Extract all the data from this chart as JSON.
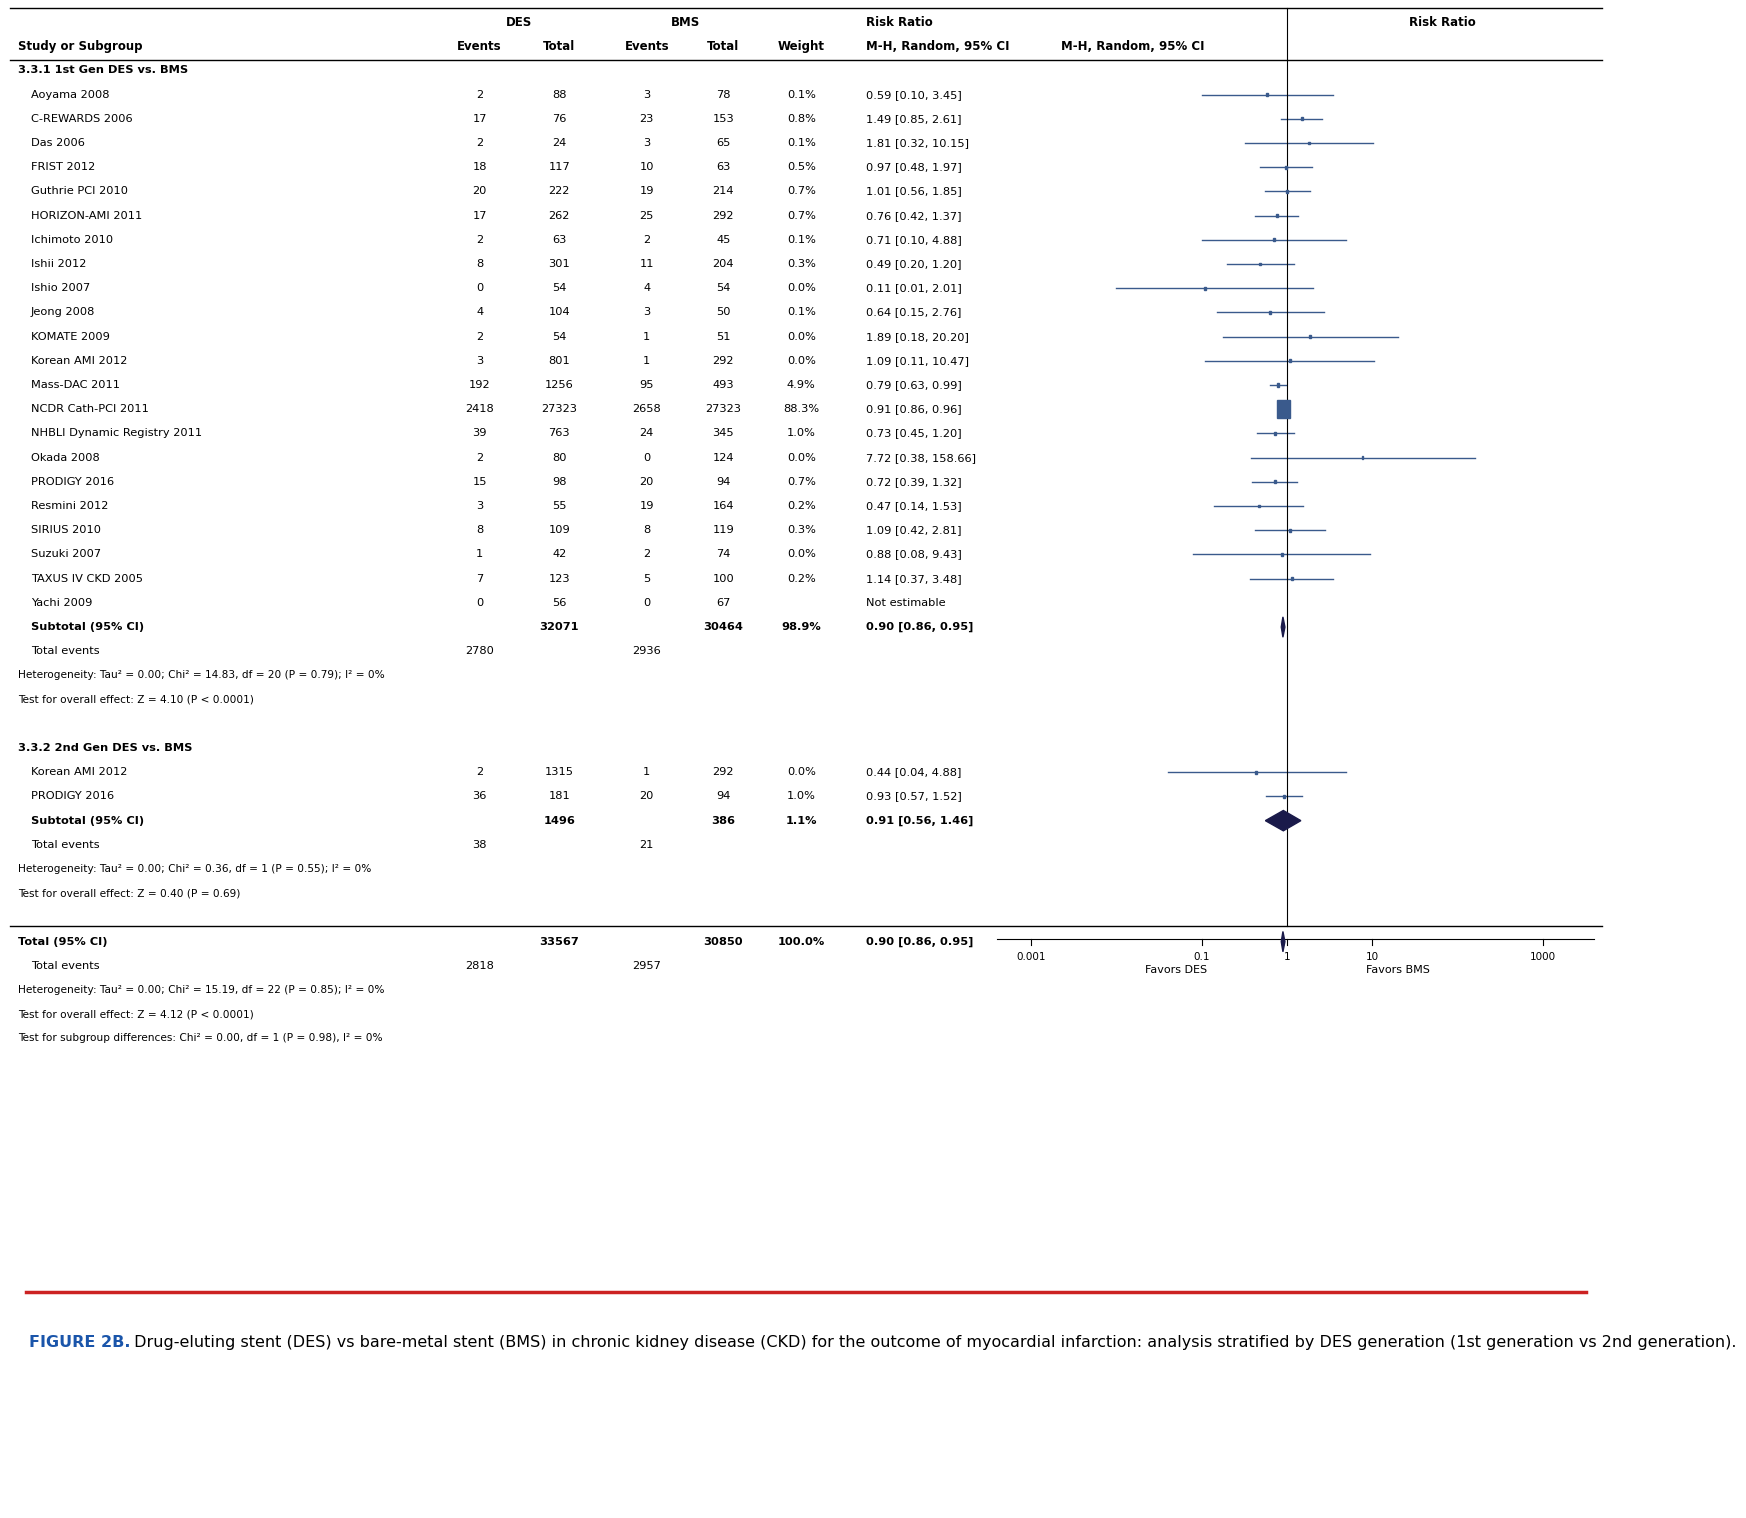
{
  "group1_header": "3.3.1 1st Gen DES vs. BMS",
  "group1_studies": [
    {
      "name": "Aoyama 2008",
      "des_e": 2,
      "des_t": 88,
      "bms_e": 3,
      "bms_t": 78,
      "weight": "0.1%",
      "rr_text": "0.59 [0.10, 3.45]",
      "rr": 0.59,
      "ci_low": 0.1,
      "ci_high": 3.45,
      "is_large": false
    },
    {
      "name": "C-REWARDS 2006",
      "des_e": 17,
      "des_t": 76,
      "bms_e": 23,
      "bms_t": 153,
      "weight": "0.8%",
      "rr_text": "1.49 [0.85, 2.61]",
      "rr": 1.49,
      "ci_low": 0.85,
      "ci_high": 2.61,
      "is_large": false
    },
    {
      "name": "Das 2006",
      "des_e": 2,
      "des_t": 24,
      "bms_e": 3,
      "bms_t": 65,
      "weight": "0.1%",
      "rr_text": "1.81 [0.32, 10.15]",
      "rr": 1.81,
      "ci_low": 0.32,
      "ci_high": 10.15,
      "is_large": false
    },
    {
      "name": "FRIST 2012",
      "des_e": 18,
      "des_t": 117,
      "bms_e": 10,
      "bms_t": 63,
      "weight": "0.5%",
      "rr_text": "0.97 [0.48, 1.97]",
      "rr": 0.97,
      "ci_low": 0.48,
      "ci_high": 1.97,
      "is_large": false
    },
    {
      "name": "Guthrie PCI 2010",
      "des_e": 20,
      "des_t": 222,
      "bms_e": 19,
      "bms_t": 214,
      "weight": "0.7%",
      "rr_text": "1.01 [0.56, 1.85]",
      "rr": 1.01,
      "ci_low": 0.56,
      "ci_high": 1.85,
      "is_large": false
    },
    {
      "name": "HORIZON-AMI 2011",
      "des_e": 17,
      "des_t": 262,
      "bms_e": 25,
      "bms_t": 292,
      "weight": "0.7%",
      "rr_text": "0.76 [0.42, 1.37]",
      "rr": 0.76,
      "ci_low": 0.42,
      "ci_high": 1.37,
      "is_large": false
    },
    {
      "name": "Ichimoto 2010",
      "des_e": 2,
      "des_t": 63,
      "bms_e": 2,
      "bms_t": 45,
      "weight": "0.1%",
      "rr_text": "0.71 [0.10, 4.88]",
      "rr": 0.71,
      "ci_low": 0.1,
      "ci_high": 4.88,
      "is_large": false
    },
    {
      "name": "Ishii 2012",
      "des_e": 8,
      "des_t": 301,
      "bms_e": 11,
      "bms_t": 204,
      "weight": "0.3%",
      "rr_text": "0.49 [0.20, 1.20]",
      "rr": 0.49,
      "ci_low": 0.2,
      "ci_high": 1.2,
      "is_large": false
    },
    {
      "name": "Ishio 2007",
      "des_e": 0,
      "des_t": 54,
      "bms_e": 4,
      "bms_t": 54,
      "weight": "0.0%",
      "rr_text": "0.11 [0.01, 2.01]",
      "rr": 0.11,
      "ci_low": 0.01,
      "ci_high": 2.01,
      "is_large": false
    },
    {
      "name": "Jeong 2008",
      "des_e": 4,
      "des_t": 104,
      "bms_e": 3,
      "bms_t": 50,
      "weight": "0.1%",
      "rr_text": "0.64 [0.15, 2.76]",
      "rr": 0.64,
      "ci_low": 0.15,
      "ci_high": 2.76,
      "is_large": false
    },
    {
      "name": "KOMATE 2009",
      "des_e": 2,
      "des_t": 54,
      "bms_e": 1,
      "bms_t": 51,
      "weight": "0.0%",
      "rr_text": "1.89 [0.18, 20.20]",
      "rr": 1.89,
      "ci_low": 0.18,
      "ci_high": 20.2,
      "is_large": false
    },
    {
      "name": "Korean AMI 2012",
      "des_e": 3,
      "des_t": 801,
      "bms_e": 1,
      "bms_t": 292,
      "weight": "0.0%",
      "rr_text": "1.09 [0.11, 10.47]",
      "rr": 1.09,
      "ci_low": 0.11,
      "ci_high": 10.47,
      "is_large": false
    },
    {
      "name": "Mass-DAC 2011",
      "des_e": 192,
      "des_t": 1256,
      "bms_e": 95,
      "bms_t": 493,
      "weight": "4.9%",
      "rr_text": "0.79 [0.63, 0.99]",
      "rr": 0.79,
      "ci_low": 0.63,
      "ci_high": 0.99,
      "is_large": false
    },
    {
      "name": "NCDR Cath-PCI 2011",
      "des_e": 2418,
      "des_t": 27323,
      "bms_e": 2658,
      "bms_t": 27323,
      "weight": "88.3%",
      "rr_text": "0.91 [0.86, 0.96]",
      "rr": 0.91,
      "ci_low": 0.86,
      "ci_high": 0.96,
      "is_large": true
    },
    {
      "name": "NHBLI Dynamic Registry 2011",
      "des_e": 39,
      "des_t": 763,
      "bms_e": 24,
      "bms_t": 345,
      "weight": "1.0%",
      "rr_text": "0.73 [0.45, 1.20]",
      "rr": 0.73,
      "ci_low": 0.45,
      "ci_high": 1.2,
      "is_large": false
    },
    {
      "name": "Okada 2008",
      "des_e": 2,
      "des_t": 80,
      "bms_e": 0,
      "bms_t": 124,
      "weight": "0.0%",
      "rr_text": "7.72 [0.38, 158.66]",
      "rr": 7.72,
      "ci_low": 0.38,
      "ci_high": 158.66,
      "is_large": false
    },
    {
      "name": "PRODIGY 2016",
      "des_e": 15,
      "des_t": 98,
      "bms_e": 20,
      "bms_t": 94,
      "weight": "0.7%",
      "rr_text": "0.72 [0.39, 1.32]",
      "rr": 0.72,
      "ci_low": 0.39,
      "ci_high": 1.32,
      "is_large": false
    },
    {
      "name": "Resmini 2012",
      "des_e": 3,
      "des_t": 55,
      "bms_e": 19,
      "bms_t": 164,
      "weight": "0.2%",
      "rr_text": "0.47 [0.14, 1.53]",
      "rr": 0.47,
      "ci_low": 0.14,
      "ci_high": 1.53,
      "is_large": false
    },
    {
      "name": "SIRIUS 2010",
      "des_e": 8,
      "des_t": 109,
      "bms_e": 8,
      "bms_t": 119,
      "weight": "0.3%",
      "rr_text": "1.09 [0.42, 2.81]",
      "rr": 1.09,
      "ci_low": 0.42,
      "ci_high": 2.81,
      "is_large": false
    },
    {
      "name": "Suzuki 2007",
      "des_e": 1,
      "des_t": 42,
      "bms_e": 2,
      "bms_t": 74,
      "weight": "0.0%",
      "rr_text": "0.88 [0.08, 9.43]",
      "rr": 0.88,
      "ci_low": 0.08,
      "ci_high": 9.43,
      "is_large": false
    },
    {
      "name": "TAXUS IV CKD 2005",
      "des_e": 7,
      "des_t": 123,
      "bms_e": 5,
      "bms_t": 100,
      "weight": "0.2%",
      "rr_text": "1.14 [0.37, 3.48]",
      "rr": 1.14,
      "ci_low": 0.37,
      "ci_high": 3.48,
      "is_large": false
    },
    {
      "name": "Yachi 2009",
      "des_e": 0,
      "des_t": 56,
      "bms_e": 0,
      "bms_t": 67,
      "weight": "",
      "rr_text": "Not estimable",
      "rr": null,
      "ci_low": null,
      "ci_high": null,
      "is_large": false
    }
  ],
  "group1_subtotal": {
    "des_t": 32071,
    "bms_t": 30464,
    "weight": "98.9%",
    "rr_text": "0.90 [0.86, 0.95]",
    "rr": 0.9,
    "ci_low": 0.86,
    "ci_high": 0.95,
    "des_e": 2780,
    "bms_e": 2936
  },
  "group1_het": "Heterogeneity: Tau² = 0.00; Chi² = 14.83, df = 20 (P = 0.79); I² = 0%",
  "group1_effect": "Test for overall effect: Z = 4.10 (P < 0.0001)",
  "group2_header": "3.3.2 2nd Gen DES vs. BMS",
  "group2_studies": [
    {
      "name": "Korean AMI 2012",
      "des_e": 2,
      "des_t": 1315,
      "bms_e": 1,
      "bms_t": 292,
      "weight": "0.0%",
      "rr_text": "0.44 [0.04, 4.88]",
      "rr": 0.44,
      "ci_low": 0.04,
      "ci_high": 4.88,
      "is_large": false
    },
    {
      "name": "PRODIGY 2016",
      "des_e": 36,
      "des_t": 181,
      "bms_e": 20,
      "bms_t": 94,
      "weight": "1.0%",
      "rr_text": "0.93 [0.57, 1.52]",
      "rr": 0.93,
      "ci_low": 0.57,
      "ci_high": 1.52,
      "is_large": false
    }
  ],
  "group2_subtotal": {
    "des_t": 1496,
    "bms_t": 386,
    "weight": "1.1%",
    "rr_text": "0.91 [0.56, 1.46]",
    "rr": 0.91,
    "ci_low": 0.56,
    "ci_high": 1.46,
    "des_e": 38,
    "bms_e": 21
  },
  "group2_het": "Heterogeneity: Tau² = 0.00; Chi² = 0.36, df = 1 (P = 0.55); I² = 0%",
  "group2_effect": "Test for overall effect: Z = 0.40 (P = 0.69)",
  "total": {
    "des_t": 33567,
    "bms_t": 30850,
    "weight": "100.0%",
    "rr_text": "0.90 [0.86, 0.95]",
    "rr": 0.9,
    "ci_low": 0.86,
    "ci_high": 0.95,
    "des_e": 2818,
    "bms_e": 2957
  },
  "total_het": "Heterogeneity: Tau² = 0.00; Chi² = 15.19, df = 22 (P = 0.85); I² = 0%",
  "total_effect": "Test for overall effect: Z = 4.12 (P < 0.0001)",
  "total_subgroup": "Test for subgroup differences: Chi² = 0.00, df = 1 (P = 0.98), I² = 0%",
  "forest_color": "#3a5a8c",
  "diamond_color": "#1a1a4a",
  "xaxis_ticks": [
    0.001,
    0.1,
    1,
    10,
    1000
  ],
  "xaxis_labels": [
    "0.001",
    "0.1",
    "1",
    "10",
    "1000"
  ],
  "xaxis_favors_left": "Favors DES",
  "xaxis_favors_right": "Favors BMS",
  "plot_xlim_low": 0.0004,
  "plot_xlim_high": 4000,
  "caption_label": "FIGURE 2B.",
  "caption_text": " Drug-eluting stent (DES) vs bare-metal stent (BMS) in chronic kidney disease (CKD) for the outcome of myocardial infarction: analysis stratified by DES generation (1st generation vs 2nd generation).",
  "sep_line_color": "#cc2222"
}
